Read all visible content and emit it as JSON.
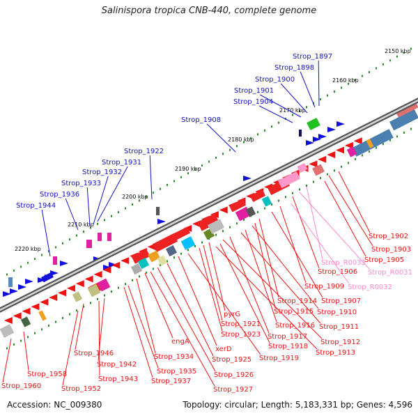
{
  "title": "Salinispora tropica CNB-440, complete genome",
  "footer": {
    "accession": "Accession: NC_009380",
    "stats": "Topology: circular; Length: 5,183,331 bp; Genes: 4,596"
  },
  "colors": {
    "forward_label": "#1010cc",
    "reverse_label": "#ee1111",
    "rna_label": "#ff88cc",
    "backbone": "#777777",
    "tick": "#2a8a2a"
  },
  "kbp_labels": [
    "2150 kbp",
    "2160 kbp",
    "2170 kbp",
    "2180 kbp",
    "2190 kbp",
    "2200 kbp",
    "2210 kbp",
    "2220 kbp"
  ],
  "forward_genes": [
    "Strop_1897",
    "Strop_1898",
    "Strop_1900",
    "Strop_1901",
    "Strop_1904",
    "Strop_1908",
    "Strop_1922",
    "Strop_1931",
    "Strop_1932",
    "Strop_1933",
    "Strop_1936",
    "Strop_1944"
  ],
  "reverse_genes": [
    "Strop_1902",
    "Strop_1903",
    "Strop_1905",
    "Strop_R0033",
    "Strop_R0031",
    "Strop_1906",
    "Strop_R0032",
    "Strop_1909",
    "Strop_1907",
    "Strop_1914",
    "Strop_1915",
    "Strop_1910",
    "Strop_1916",
    "Strop_1911",
    "pyrG",
    "Strop_1921",
    "Strop_1923",
    "Strop_1917",
    "Strop_1912",
    "Strop_1918",
    "Strop_1913",
    "engA",
    "xerD",
    "Strop_1919",
    "Strop_1925",
    "Strop_1946",
    "Strop_1934",
    "Strop_1942",
    "Strop_1935",
    "Strop_1926",
    "Strop_1958",
    "Strop_1943",
    "Strop_1937",
    "Strop_1927",
    "Strop_1952",
    "Strop_1960"
  ]
}
